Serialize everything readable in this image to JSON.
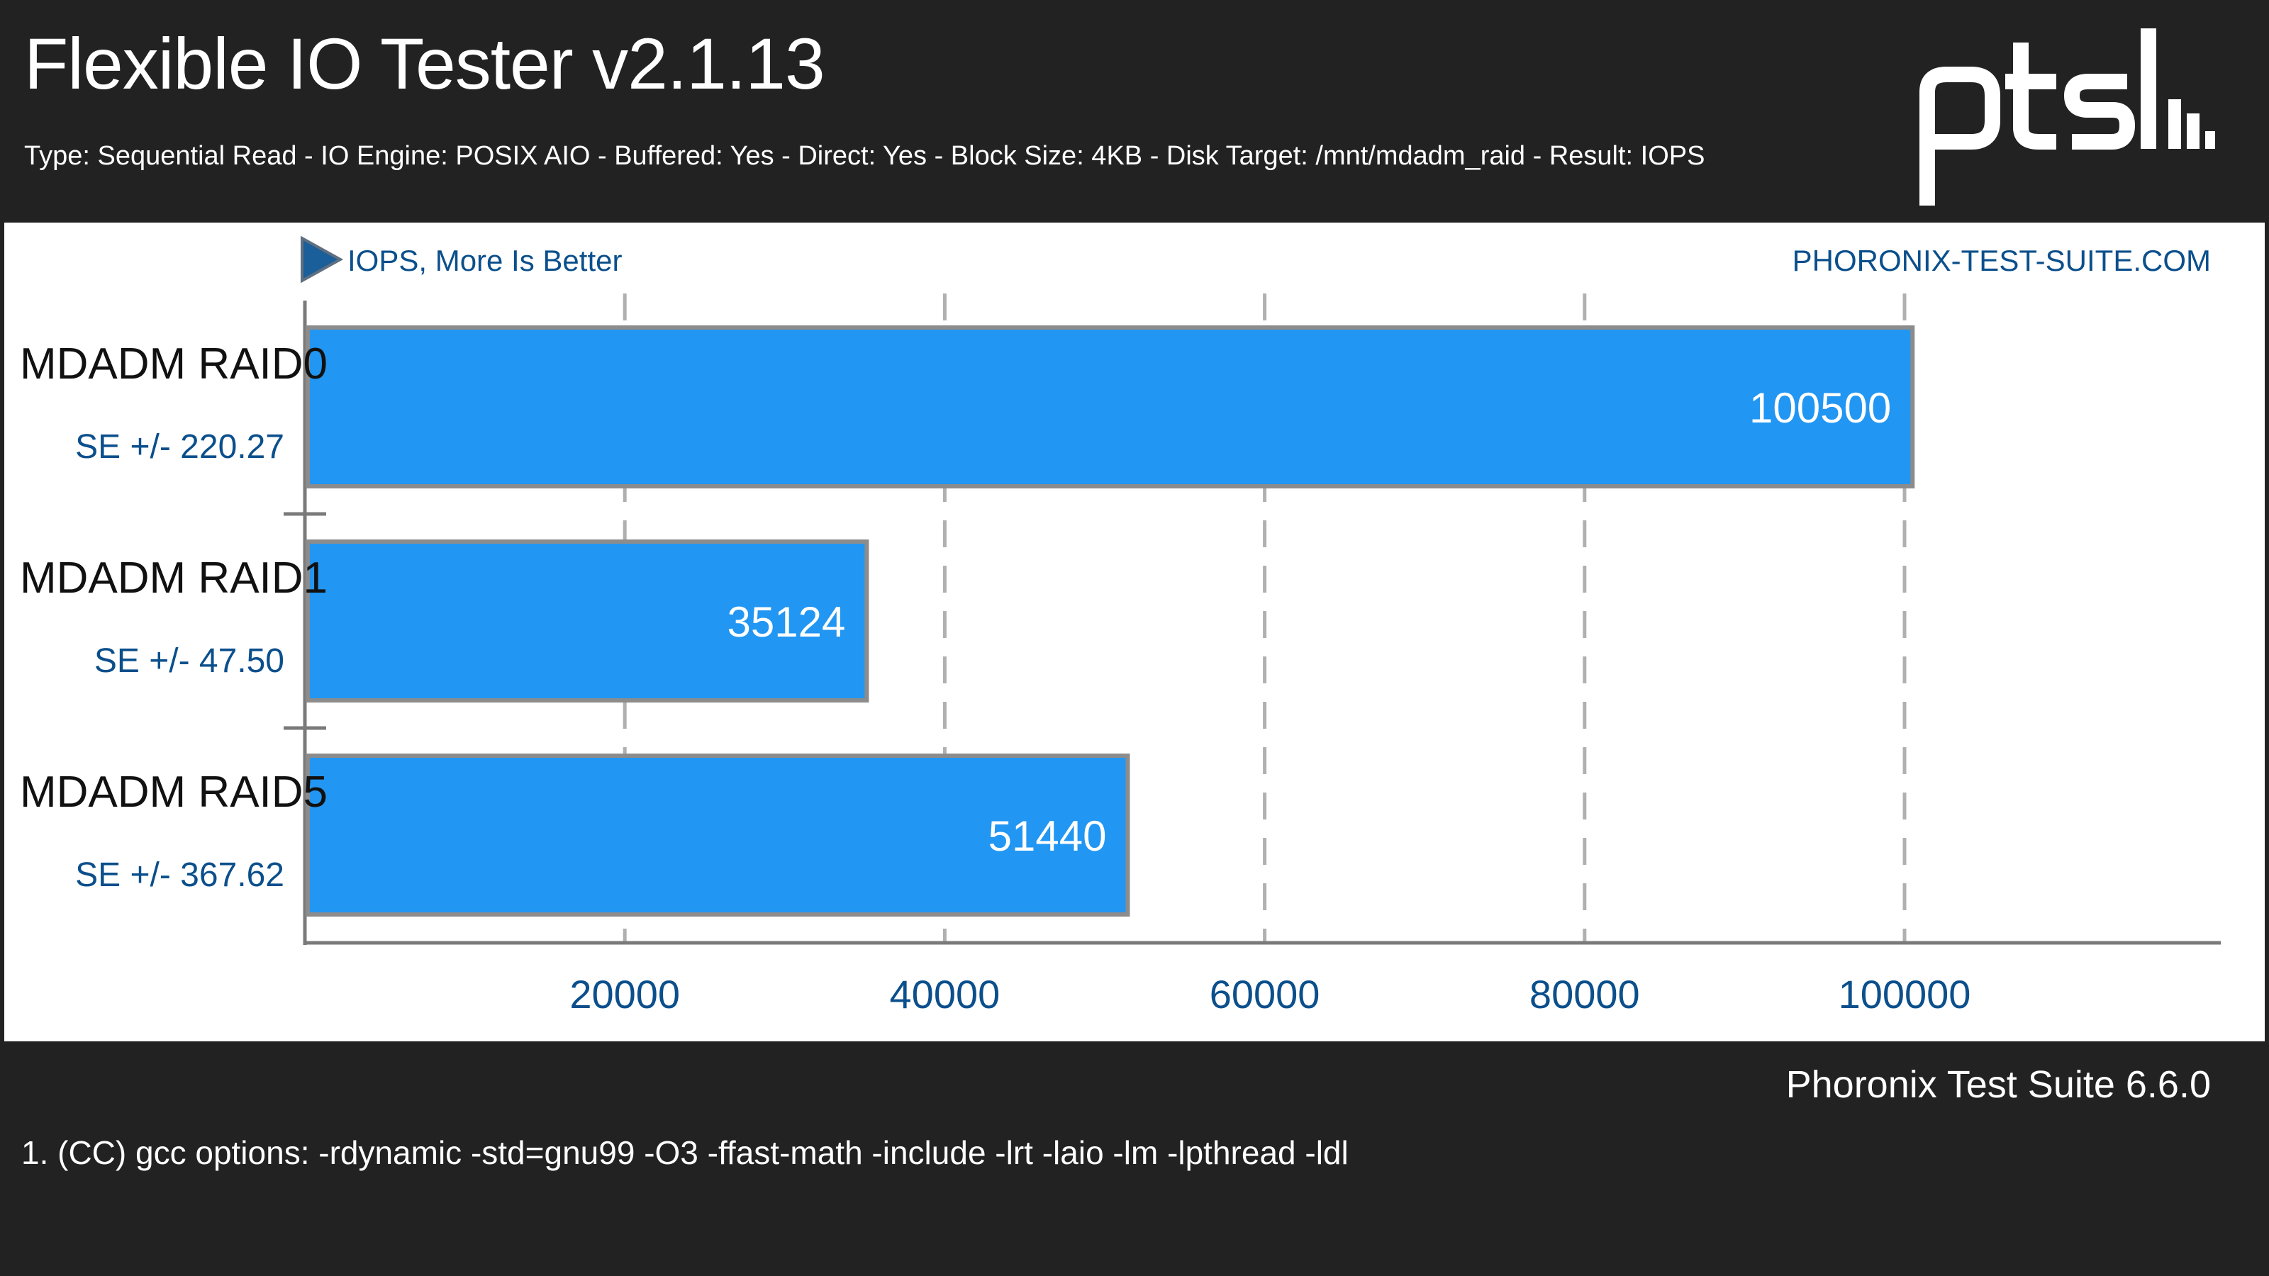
{
  "header": {
    "title": "Flexible IO Tester v2.1.13",
    "subtitle": "Type: Sequential Read - IO Engine: POSIX AIO - Buffered: Yes - Direct: Yes - Block Size: 4KB - Disk Target: /mnt/mdadm_raid - Result: IOPS",
    "logo_icon": "pts-logo-icon"
  },
  "chart_data": {
    "type": "bar",
    "orientation": "horizontal",
    "direction_label": "IOPS, More Is Better",
    "watermark": "PHORONIX-TEST-SUITE.COM",
    "categories": [
      "MDADM RAID0",
      "MDADM RAID1",
      "MDADM RAID5"
    ],
    "values": [
      100500,
      35124,
      51440
    ],
    "value_labels": [
      "100500",
      "35124",
      "51440"
    ],
    "errors": [
      "SE +/- 220.27",
      "SE +/- 47.50",
      "SE +/- 367.62"
    ],
    "xlim": [
      0,
      120000
    ],
    "ticks": [
      20000,
      40000,
      60000,
      80000,
      100000
    ],
    "tick_labels": [
      "20000",
      "40000",
      "60000",
      "80000",
      "100000"
    ],
    "grid": true,
    "bar_color": "#2196f3",
    "bar_border_color": "#8c8c8c",
    "label_color": "#0b4f8c"
  },
  "footer": {
    "version": "Phoronix Test Suite 6.6.0",
    "note": "1. (CC) gcc options: -rdynamic -std=gnu99 -O3 -ffast-math -include -lrt -laio -lm -lpthread -ldl"
  },
  "colors": {
    "background": "#222222",
    "panel": "#ffffff",
    "accent": "#2196f3"
  }
}
